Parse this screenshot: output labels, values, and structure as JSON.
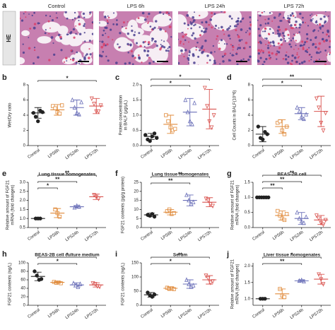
{
  "panel_a": {
    "label": "a",
    "row_label": "HE",
    "columns": [
      "Control",
      "LPS 6h",
      "LPS 24h",
      "LPS 72h"
    ]
  },
  "chart_data": [
    {
      "type": "dot",
      "label": "b",
      "y_label": "Wet/Dry ratio",
      "categories": [
        "Control",
        "LPS6h",
        "LPS24h",
        "LPS72h"
      ],
      "groups": [
        {
          "color": "#222222",
          "marker": "circle",
          "points": [
            4.3,
            3.8,
            3.2,
            4.6,
            4.4
          ],
          "mean": 4.3,
          "sd": 0.7
        },
        {
          "color": "#e08a3a",
          "marker": "square",
          "points": [
            5.2,
            4.9,
            4.4,
            4.2,
            5.3
          ],
          "mean": 4.7,
          "sd": 0.7
        },
        {
          "color": "#6a6fb8",
          "marker": "triangle",
          "points": [
            6.0,
            5.0,
            4.3,
            4.1,
            5.7
          ],
          "mean": 5.0,
          "sd": 1.0
        },
        {
          "color": "#d9534f",
          "marker": "triangle-down",
          "points": [
            6.2,
            5.5,
            4.5,
            4.5,
            5.3
          ],
          "mean": 5.2,
          "sd": 1.0
        }
      ],
      "ylim": [
        0,
        8
      ],
      "yticks": [
        0,
        2,
        4,
        6,
        8
      ],
      "brackets": [
        {
          "from": 0,
          "to": 3,
          "label": "*"
        }
      ]
    },
    {
      "type": "dot",
      "label": "c",
      "y_label": "Protein concentration in BALF (μg/μL)",
      "categories": [
        "Control",
        "LPS6h",
        "LPS24h",
        "LPS72h"
      ],
      "groups": [
        {
          "color": "#222222",
          "marker": "circle",
          "points": [
            0.35,
            0.2,
            0.15,
            0.3,
            0.4,
            0.25
          ],
          "mean": 0.3,
          "sd": 0.1
        },
        {
          "color": "#e08a3a",
          "marker": "square",
          "points": [
            1.0,
            0.8,
            0.6,
            0.5,
            0.55
          ],
          "mean": 0.7,
          "sd": 0.3
        },
        {
          "color": "#6a6fb8",
          "marker": "triangle",
          "points": [
            1.5,
            1.1,
            0.8,
            0.7,
            1.4
          ],
          "mean": 1.1,
          "sd": 0.45
        },
        {
          "color": "#d9534f",
          "marker": "triangle-down",
          "points": [
            1.9,
            1.3,
            0.8,
            0.6,
            1.0
          ],
          "mean": 1.2,
          "sd": 0.65
        }
      ],
      "ylim": [
        0,
        2
      ],
      "yticks": [
        {
          "value": 0,
          "label": "0.0"
        },
        0.5,
        {
          "value": 1,
          "label": "1.0"
        },
        1.5,
        {
          "value": 2,
          "label": "2.0"
        }
      ],
      "brackets": [
        {
          "from": 0,
          "to": 2,
          "label": "*"
        },
        {
          "from": 0,
          "to": 3,
          "label": "*"
        }
      ]
    },
    {
      "type": "dot",
      "label": "d",
      "y_label": "Cell Counts in BALF(10^6)",
      "categories": [
        "Control",
        "LPS6h",
        "LPS24h",
        "LPS72h"
      ],
      "groups": [
        {
          "color": "#222222",
          "marker": "circle",
          "points": [
            2.5,
            1.0,
            0.8,
            1.8,
            1.5
          ],
          "mean": 1.5,
          "sd": 1.0
        },
        {
          "color": "#e08a3a",
          "marker": "square",
          "points": [
            3.0,
            3.2,
            2.0,
            1.5,
            2.5
          ],
          "mean": 2.5,
          "sd": 0.9
        },
        {
          "color": "#6a6fb8",
          "marker": "triangle",
          "points": [
            5.0,
            4.5,
            3.8,
            3.5,
            4.1
          ],
          "mean": 4.2,
          "sd": 0.8
        },
        {
          "color": "#d9534f",
          "marker": "triangle-down",
          "points": [
            6.2,
            5.0,
            3.0,
            2.0,
            4.3
          ],
          "mean": 4.5,
          "sd": 2.0
        }
      ],
      "ylim": [
        0,
        8
      ],
      "yticks": [
        0,
        2,
        4,
        6,
        8
      ],
      "brackets": [
        {
          "from": 0,
          "to": 2,
          "label": "*"
        },
        {
          "from": 0,
          "to": 3,
          "label": "**"
        }
      ]
    },
    {
      "type": "dot",
      "label": "e",
      "title": "Lung tissue homogenates",
      "y_label": "Relative amount of FGF21 mRNA (fold changes)",
      "categories": [
        "Control",
        "LPS6h",
        "LPS24h",
        "LPS72h"
      ],
      "groups": [
        {
          "color": "#222222",
          "marker": "circle",
          "points": [
            1.0,
            1.0,
            1.0
          ],
          "mean": 1.0,
          "sd": 0.0
        },
        {
          "color": "#e08a3a",
          "marker": "square",
          "points": [
            1.5,
            1.3,
            1.1
          ],
          "mean": 1.3,
          "sd": 0.25
        },
        {
          "color": "#6a6fb8",
          "marker": "triangle",
          "points": [
            1.6,
            1.7,
            1.65
          ],
          "mean": 1.65,
          "sd": 0.07
        },
        {
          "color": "#d9534f",
          "marker": "triangle-down",
          "points": [
            2.3,
            2.2,
            2.1
          ],
          "mean": 2.2,
          "sd": 0.15
        }
      ],
      "ylim": [
        0.5,
        3
      ],
      "yticks": [
        0.5,
        {
          "value": 1,
          "label": "1.0"
        },
        1.5,
        {
          "value": 2,
          "label": "2.0"
        },
        2.5,
        {
          "value": 3,
          "label": "3.0"
        }
      ],
      "brackets": [
        {
          "from": 0,
          "to": 1,
          "label": "*"
        },
        {
          "from": 0,
          "to": 2,
          "label": "**"
        },
        {
          "from": 0,
          "to": 3,
          "label": "**"
        }
      ]
    },
    {
      "type": "dot",
      "label": "f",
      "title": "Lung tissue homogenates",
      "y_label": "FGF21 contents (pg/g protein)",
      "categories": [
        "Control",
        "LPS6h",
        "LPS24h",
        "LPS72h"
      ],
      "groups": [
        {
          "color": "#222222",
          "marker": "circle",
          "points": [
            7,
            6.5,
            7.5,
            6
          ],
          "mean": 7,
          "sd": 1
        },
        {
          "color": "#e08a3a",
          "marker": "square",
          "points": [
            9,
            10,
            7.5,
            8
          ],
          "mean": 8.5,
          "sd": 1.5
        },
        {
          "color": "#6a6fb8",
          "marker": "triangle",
          "points": [
            18,
            15,
            13,
            14
          ],
          "mean": 15,
          "sd": 3
        },
        {
          "color": "#d9534f",
          "marker": "triangle-down",
          "points": [
            16,
            15,
            13,
            12
          ],
          "mean": 14,
          "sd": 2.5
        }
      ],
      "ylim": [
        0,
        25
      ],
      "yticks": [
        0,
        5,
        10,
        15,
        20,
        25
      ],
      "brackets": [
        {
          "from": 0,
          "to": 2,
          "label": "**"
        },
        {
          "from": 0,
          "to": 3,
          "label": "**"
        }
      ]
    },
    {
      "type": "dot",
      "label": "g",
      "title": "BEAS-2B cell",
      "y_label": "Relative amount of FGF21 mRNA (fold changes)",
      "categories": [
        "Control",
        "LPS6h",
        "LPS24h",
        "LPS72h"
      ],
      "groups": [
        {
          "color": "#222222",
          "marker": "circle",
          "points": [
            1,
            1,
            1,
            1,
            1,
            1
          ],
          "mean": 1,
          "sd": 0
        },
        {
          "color": "#e08a3a",
          "marker": "square",
          "points": [
            0.55,
            0.4,
            0.3,
            0.25,
            0.45
          ],
          "mean": 0.4,
          "sd": 0.15
        },
        {
          "color": "#6a6fb8",
          "marker": "triangle",
          "points": [
            0.5,
            0.3,
            0.2,
            0.15,
            0.35
          ],
          "mean": 0.3,
          "sd": 0.2
        },
        {
          "color": "#d9534f",
          "marker": "triangle-down",
          "points": [
            0.4,
            0.3,
            0.15,
            0.1,
            0.25
          ],
          "mean": 0.25,
          "sd": 0.15
        }
      ],
      "ylim": [
        0,
        1.5
      ],
      "yticks": [
        {
          "value": 0,
          "label": "0.0"
        },
        0.5,
        {
          "value": 1,
          "label": "1.0"
        },
        1.5
      ],
      "brackets": [
        {
          "from": 0,
          "to": 1,
          "label": "**"
        },
        {
          "from": 0,
          "to": 2,
          "label": "**"
        },
        {
          "from": 0,
          "to": 3,
          "label": "**"
        }
      ]
    },
    {
      "type": "dot",
      "label": "h",
      "title": "BEAS-2B cell culture medium",
      "y_label": "FGF21 contents (ng/L)",
      "categories": [
        "Control",
        "LPS6h",
        "LPS24h",
        "LPS72h"
      ],
      "groups": [
        {
          "color": "#222222",
          "marker": "circle",
          "points": [
            80,
            70,
            60,
            62
          ],
          "mean": 68,
          "sd": 10
        },
        {
          "color": "#e08a3a",
          "marker": "square",
          "points": [
            55,
            53,
            54,
            52
          ],
          "mean": 54,
          "sd": 2
        },
        {
          "color": "#6a6fb8",
          "marker": "triangle",
          "points": [
            52,
            47,
            43,
            50
          ],
          "mean": 48,
          "sd": 5
        },
        {
          "color": "#d9534f",
          "marker": "triangle-down",
          "points": [
            52,
            50,
            45,
            44
          ],
          "mean": 48,
          "sd": 5
        }
      ],
      "ylim": [
        0,
        100
      ],
      "yticks": [
        0,
        20,
        40,
        60,
        80,
        100
      ],
      "brackets": [
        {
          "from": 0,
          "to": 2,
          "label": "*"
        },
        {
          "from": 0,
          "to": 3,
          "label": "*"
        }
      ]
    },
    {
      "type": "dot",
      "label": "i",
      "title": "Serum",
      "y_label": "FGF21 contents (ng/L)",
      "categories": [
        "Control",
        "LPS6h",
        "LPS24h",
        "LPS72h"
      ],
      "groups": [
        {
          "color": "#222222",
          "marker": "circle",
          "points": [
            45,
            35,
            30,
            38
          ],
          "mean": 37,
          "sd": 8
        },
        {
          "color": "#e08a3a",
          "marker": "square",
          "points": [
            62,
            58,
            60,
            57
          ],
          "mean": 60,
          "sd": 5
        },
        {
          "color": "#6a6fb8",
          "marker": "triangle",
          "points": [
            90,
            75,
            65,
            70
          ],
          "mean": 75,
          "sd": 15
        },
        {
          "color": "#d9534f",
          "marker": "triangle-down",
          "points": [
            105,
            95,
            80,
            85
          ],
          "mean": 90,
          "sd": 15
        }
      ],
      "ylim": [
        0,
        150
      ],
      "yticks": [
        0,
        50,
        100,
        150
      ],
      "brackets": [
        {
          "from": 0,
          "to": 2,
          "label": "*"
        },
        {
          "from": 0,
          "to": 3,
          "label": "**"
        }
      ]
    },
    {
      "type": "dot",
      "label": "j",
      "title": "Liver tissue homogenates",
      "y_label": "Relative amount of FGF21 mRNA (fold changes)",
      "categories": [
        "Control",
        "LPS6h",
        "LPS24h",
        "LPS72h"
      ],
      "groups": [
        {
          "color": "#222222",
          "marker": "circle",
          "points": [
            1.0,
            1.0,
            1.0
          ],
          "mean": 1.0,
          "sd": 0.0
        },
        {
          "color": "#e08a3a",
          "marker": "square",
          "points": [
            1.3,
            1.1,
            1.05
          ],
          "mean": 1.15,
          "sd": 0.15
        },
        {
          "color": "#6a6fb8",
          "marker": "triangle",
          "points": [
            1.55,
            1.57,
            1.53
          ],
          "mean": 1.55,
          "sd": 0.03
        },
        {
          "color": "#d9534f",
          "marker": "triangle-down",
          "points": [
            1.75,
            1.6,
            1.45
          ],
          "mean": 1.6,
          "sd": 0.15
        }
      ],
      "ylim": [
        0.8,
        2.1
      ],
      "yticks": [
        {
          "value": 1,
          "label": "1.0"
        },
        1.5,
        {
          "value": 2,
          "label": "2.0"
        }
      ],
      "brackets": [
        {
          "from": 0,
          "to": 2,
          "label": "**"
        },
        {
          "from": 0,
          "to": 3,
          "label": "*"
        }
      ]
    }
  ]
}
